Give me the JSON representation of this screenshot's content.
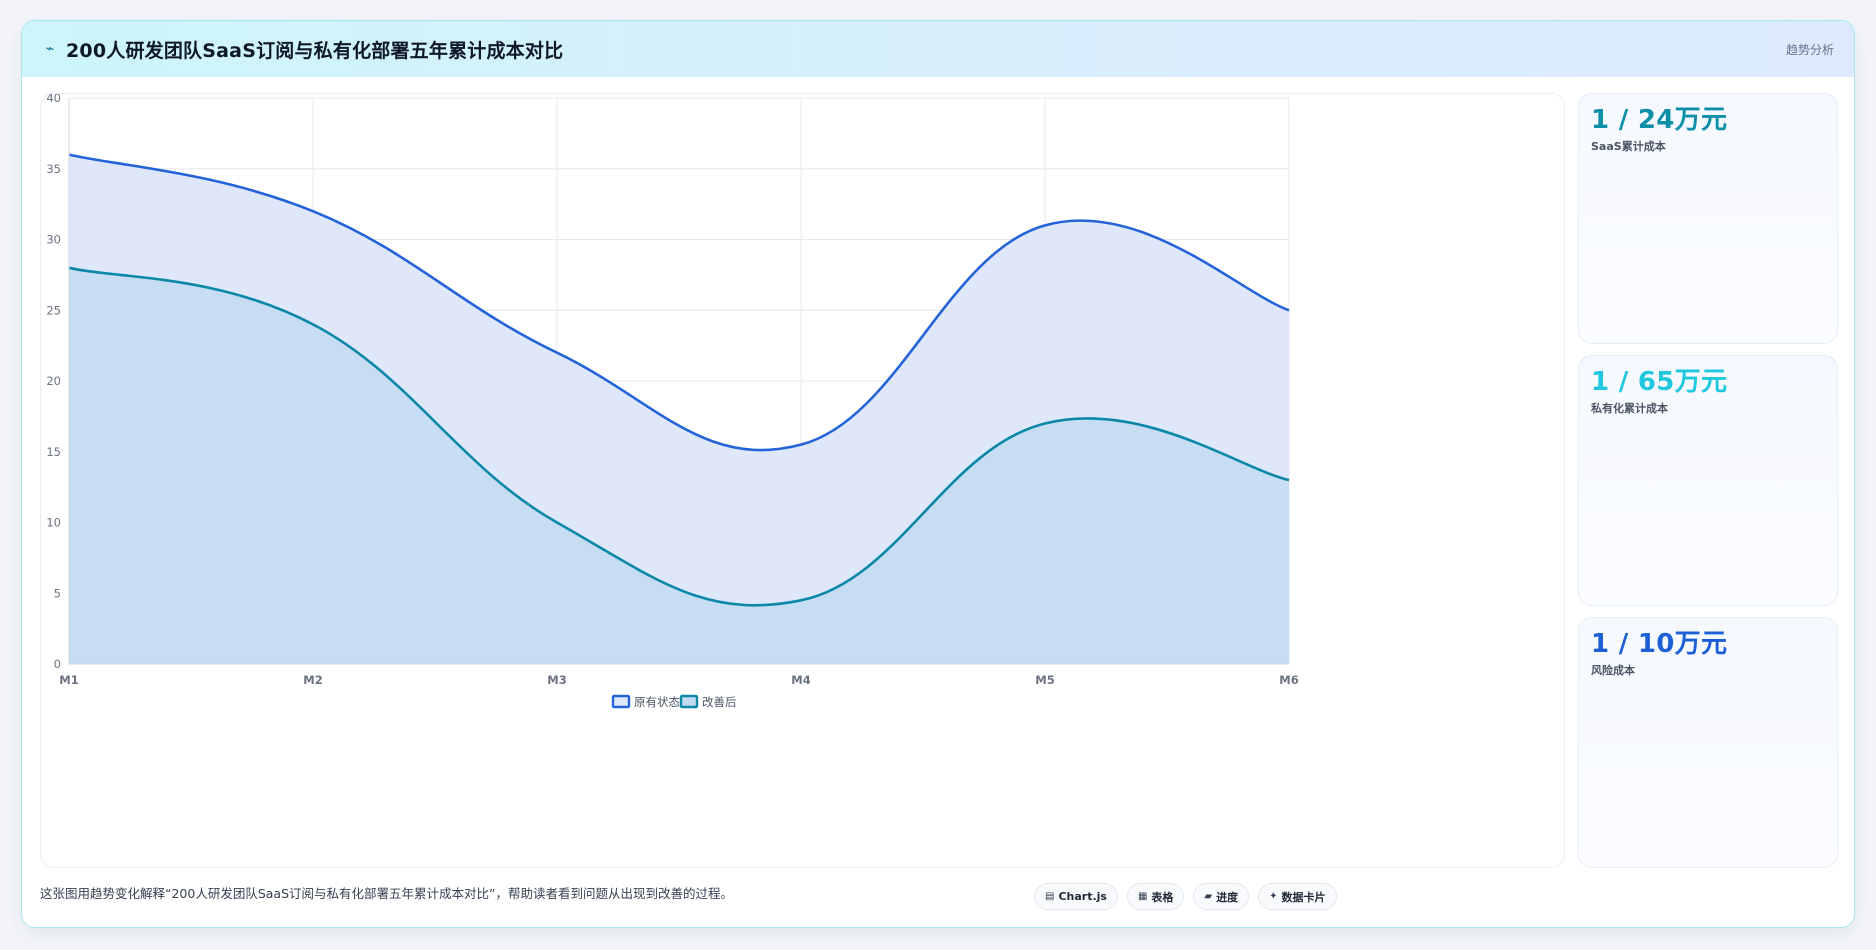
{
  "header": {
    "icon": "trend-line-icon",
    "title": "200人研发团队SaaS订阅与私有化部署五年累计成本对比",
    "tag": "趋势分析"
  },
  "chart_data": {
    "type": "area",
    "title": "",
    "xlabel": "",
    "ylabel": "",
    "categories": [
      "M1",
      "M2",
      "M3",
      "M4",
      "M5",
      "M6"
    ],
    "ylim": [
      0,
      40
    ],
    "yticks": [
      0,
      5,
      10,
      15,
      20,
      25,
      30,
      35,
      40
    ],
    "grid": true,
    "legend": "bottom-center",
    "series": [
      {
        "name": "原有状态",
        "values": [
          36,
          32,
          22,
          15.5,
          31,
          25
        ],
        "color": "#2563d9",
        "fill": "#dfe8fb"
      },
      {
        "name": "改善后",
        "values": [
          28,
          24,
          10,
          4.5,
          17,
          13
        ],
        "color": "#0b87a8",
        "fill": "#c4dcf2"
      }
    ]
  },
  "kpis": [
    {
      "value": "1 / 24万元",
      "label": "SaaS累计成本",
      "color": "#0e8fa8"
    },
    {
      "value": "1 / 65万元",
      "label": "私有化累计成本",
      "color": "#1fc8de"
    },
    {
      "value": "1 / 10万元",
      "label": "风险成本",
      "color": "#1d5fd6"
    }
  ],
  "footer": {
    "text": "这张图用趋势变化解释“200人研发团队SaaS订阅与私有化部署五年累计成本对比”，帮助读者看到问题从出现到改善的过程。",
    "chips": [
      {
        "icon": "chart-icon",
        "glyph": "▤",
        "label": "Chart.js"
      },
      {
        "icon": "table-icon",
        "glyph": "▦",
        "label": "表格"
      },
      {
        "icon": "progress-icon",
        "glyph": "▰",
        "label": "进度"
      },
      {
        "icon": "card-icon",
        "glyph": "✦",
        "label": "数据卡片"
      }
    ]
  }
}
